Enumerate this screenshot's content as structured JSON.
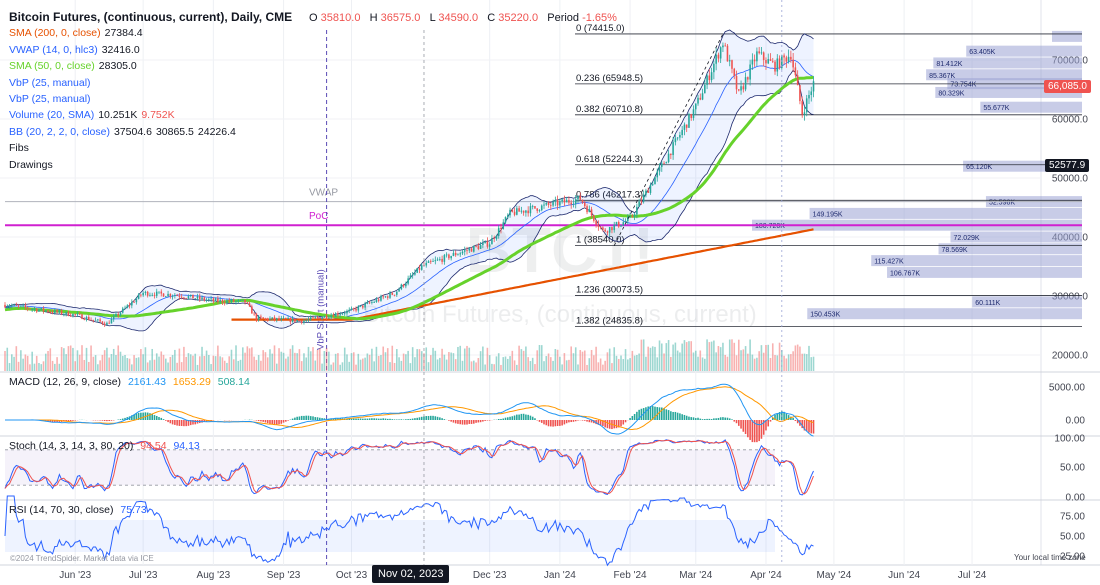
{
  "header": {
    "title": "Bitcoin Futures, (continuous, current), Daily, CME",
    "open_label": "O",
    "open": "35810.0",
    "high_label": "H",
    "high": "36575.0",
    "low_label": "L",
    "low": "34590.0",
    "close_label": "C",
    "close": "35220.0",
    "period_label": "Period",
    "period": "-1.65%"
  },
  "indicators": [
    {
      "name": "SMA (200, 0, close)",
      "values": [
        "27384.4"
      ],
      "color": "#e65100"
    },
    {
      "name": "VWAP (14, 0, hlc3)",
      "values": [
        "32416.0"
      ],
      "color": "#2962ff"
    },
    {
      "name": "SMA (50, 0, close)",
      "values": [
        "28305.0"
      ],
      "color": "#66d22b"
    },
    {
      "name": "VbP (25, manual)",
      "values": [],
      "color": "#2962ff"
    },
    {
      "name": "VbP (25, manual)",
      "values": [],
      "color": "#2962ff"
    },
    {
      "name": "Volume (20, SMA)",
      "values": [
        "10.251K",
        "9.752K"
      ],
      "color": "#2962ff"
    },
    {
      "name": "BB (20, 2, 2, 0, close)",
      "values": [
        "37504.6",
        "30865.5",
        "24226.4"
      ],
      "color": "#2962ff"
    },
    {
      "name": "Fibs",
      "values": [],
      "color": "#131722"
    },
    {
      "name": "Drawings",
      "values": [],
      "color": "#131722"
    }
  ],
  "colors": {
    "up": "#26a69a",
    "down": "#ef5350",
    "sma50": "#66d22b",
    "sma200": "#e65100",
    "poc": "#d020d0",
    "vbp": "#9aa3d4",
    "bb": "#2962ff",
    "price_tag": "#ef5350",
    "date_tag": "#131722"
  },
  "price_scale": {
    "ticks": [
      "70000.0",
      "60000.0",
      "50000.0",
      "40000.0",
      "30000.0",
      "20000.0"
    ],
    "last_price": "66,085.0",
    "crosshair_price": "52577.9"
  },
  "time_axis": {
    "labels": [
      "Jun '23",
      "Jul '23",
      "Aug '23",
      "Sep '23",
      "Oct '23",
      "Dec '23",
      "Jan '24",
      "Feb '24",
      "Mar '24",
      "Apr '24",
      "May '24",
      "Jun '24",
      "Jul '24"
    ],
    "crosshair_date": "Nov 02, 2023"
  },
  "fib_levels": [
    {
      "label": "0 (74415.0)",
      "value": 74415
    },
    {
      "label": "0.236 (65948.5)",
      "value": 65948.5
    },
    {
      "label": "0.382 (60710.8)",
      "value": 60710.8
    },
    {
      "label": "0.618 (52244.3)",
      "value": 52244.3
    },
    {
      "label": "0.786 (46217.3)",
      "value": 46217.3
    },
    {
      "label": "1 (38540.0)",
      "value": 38540
    },
    {
      "label": "1.236 (30073.5)",
      "value": 30073.5
    },
    {
      "label": "1.382 (24835.8)",
      "value": 24835.8
    }
  ],
  "chart_labels": {
    "vwap": "VWAP",
    "poc": "PoC",
    "vbp_start": "VbP Start (manual)",
    "watermark_symbol": "BTC1!",
    "watermark_name": "Bitcoin Futures, (continuous, current)",
    "copyright": "©2024 TrendSpider. Market data via ICE",
    "local_time": "Your local time zone"
  },
  "chart_data": {
    "type": "candlestick",
    "x_range": [
      "2023-05-01",
      "2024-07-31"
    ],
    "y_range": [
      20000,
      76000
    ],
    "price_path": [
      {
        "date": "2023-05-01",
        "price": 28500
      },
      {
        "date": "2023-06-01",
        "price": 26800
      },
      {
        "date": "2023-06-15",
        "price": 25300
      },
      {
        "date": "2023-07-01",
        "price": 30500
      },
      {
        "date": "2023-07-15",
        "price": 30200
      },
      {
        "date": "2023-08-01",
        "price": 29200
      },
      {
        "date": "2023-08-15",
        "price": 29000
      },
      {
        "date": "2023-08-20",
        "price": 26200
      },
      {
        "date": "2023-09-10",
        "price": 25800
      },
      {
        "date": "2023-10-01",
        "price": 27500
      },
      {
        "date": "2023-10-20",
        "price": 30500
      },
      {
        "date": "2023-11-01",
        "price": 35000
      },
      {
        "date": "2023-11-15",
        "price": 37000
      },
      {
        "date": "2023-12-01",
        "price": 39000
      },
      {
        "date": "2023-12-10",
        "price": 44000
      },
      {
        "date": "2024-01-10",
        "price": 46500
      },
      {
        "date": "2024-01-20",
        "price": 41000
      },
      {
        "date": "2024-02-01",
        "price": 43000
      },
      {
        "date": "2024-02-15",
        "price": 52000
      },
      {
        "date": "2024-03-01",
        "price": 62000
      },
      {
        "date": "2024-03-13",
        "price": 73000
      },
      {
        "date": "2024-03-20",
        "price": 64000
      },
      {
        "date": "2024-03-28",
        "price": 71000
      },
      {
        "date": "2024-04-05",
        "price": 69000
      },
      {
        "date": "2024-04-12",
        "price": 71000
      },
      {
        "date": "2024-04-17",
        "price": 61000
      },
      {
        "date": "2024-04-22",
        "price": 66000
      }
    ],
    "volume_profile": [
      {
        "price": 74000,
        "volume": null
      },
      {
        "price": 71500,
        "volume": "63.405K"
      },
      {
        "price": 69500,
        "volume": "81.412K"
      },
      {
        "price": 67500,
        "volume": "85.367K"
      },
      {
        "price": 66000,
        "volume": "73.754K"
      },
      {
        "price": 64500,
        "volume": "80.329K"
      },
      {
        "price": 62000,
        "volume": "55.677K"
      },
      {
        "price": 52000,
        "volume": "65.120K"
      },
      {
        "price": 46000,
        "volume": "52.598K"
      },
      {
        "price": 44000,
        "volume": "149.195K"
      },
      {
        "price": 42000,
        "volume": "180.720K"
      },
      {
        "price": 40000,
        "volume": "72.029K"
      },
      {
        "price": 38000,
        "volume": "78.569K"
      },
      {
        "price": 36000,
        "volume": "115.427K"
      },
      {
        "price": 34000,
        "volume": "106.767K"
      },
      {
        "price": 29000,
        "volume": "60.111K"
      },
      {
        "price": 27000,
        "volume": "150.453K"
      }
    ],
    "vwap_level": 46000,
    "poc_level": 42000,
    "macd": {
      "label": "MACD (12, 26, 9, close)",
      "values": [
        "2161.43",
        "1653.29",
        "508.14"
      ],
      "ticks": [
        "5000.00",
        "0.00"
      ]
    },
    "stoch": {
      "label": "Stoch (14, 3, 14, 3, 80, 20)",
      "values": [
        "94.54",
        "94.13"
      ],
      "ticks": [
        "100.00",
        "50.00",
        "0.00"
      ]
    },
    "rsi": {
      "label": "RSI (14, 70, 30, close)",
      "values": [
        "75.73"
      ],
      "ticks": [
        "75.00",
        "50.00",
        "25.00"
      ]
    }
  }
}
